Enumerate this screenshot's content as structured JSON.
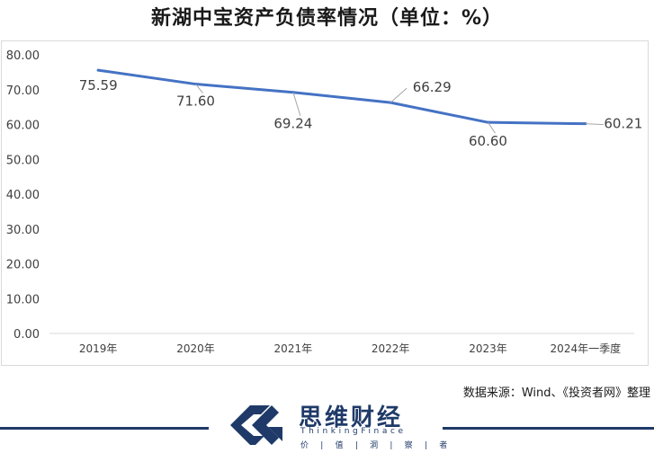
{
  "page": {
    "title": "新湖中宝资产负债率情况（单位：%）",
    "source": "数据来源：Wind、《投资者网》整理"
  },
  "brand": {
    "name_cn": "思维财经",
    "name_en": "ThinkingFinace",
    "tagline": "价 | 值 | 洞 | 察 | 者",
    "color": "#1f3a68"
  },
  "chart_data": {
    "type": "line",
    "title": "新湖中宝资产负债率情况（单位：%）",
    "categories": [
      "2019年",
      "2020年",
      "2021年",
      "2022年",
      "2023年",
      "2024年一季度"
    ],
    "series": [
      {
        "values": [
          75.59,
          71.6,
          69.24,
          66.29,
          60.6,
          60.21
        ],
        "color": "#4472c4"
      }
    ],
    "data_labels": [
      "75.59",
      "71.60",
      "69.24",
      "66.29",
      "60.60",
      "60.21"
    ],
    "yticks": [
      "0.00",
      "10.00",
      "20.00",
      "30.00",
      "40.00",
      "50.00",
      "60.00",
      "70.00",
      "80.00"
    ],
    "ylim": [
      0,
      80
    ],
    "grid": false,
    "xlabel": "",
    "ylabel": ""
  }
}
